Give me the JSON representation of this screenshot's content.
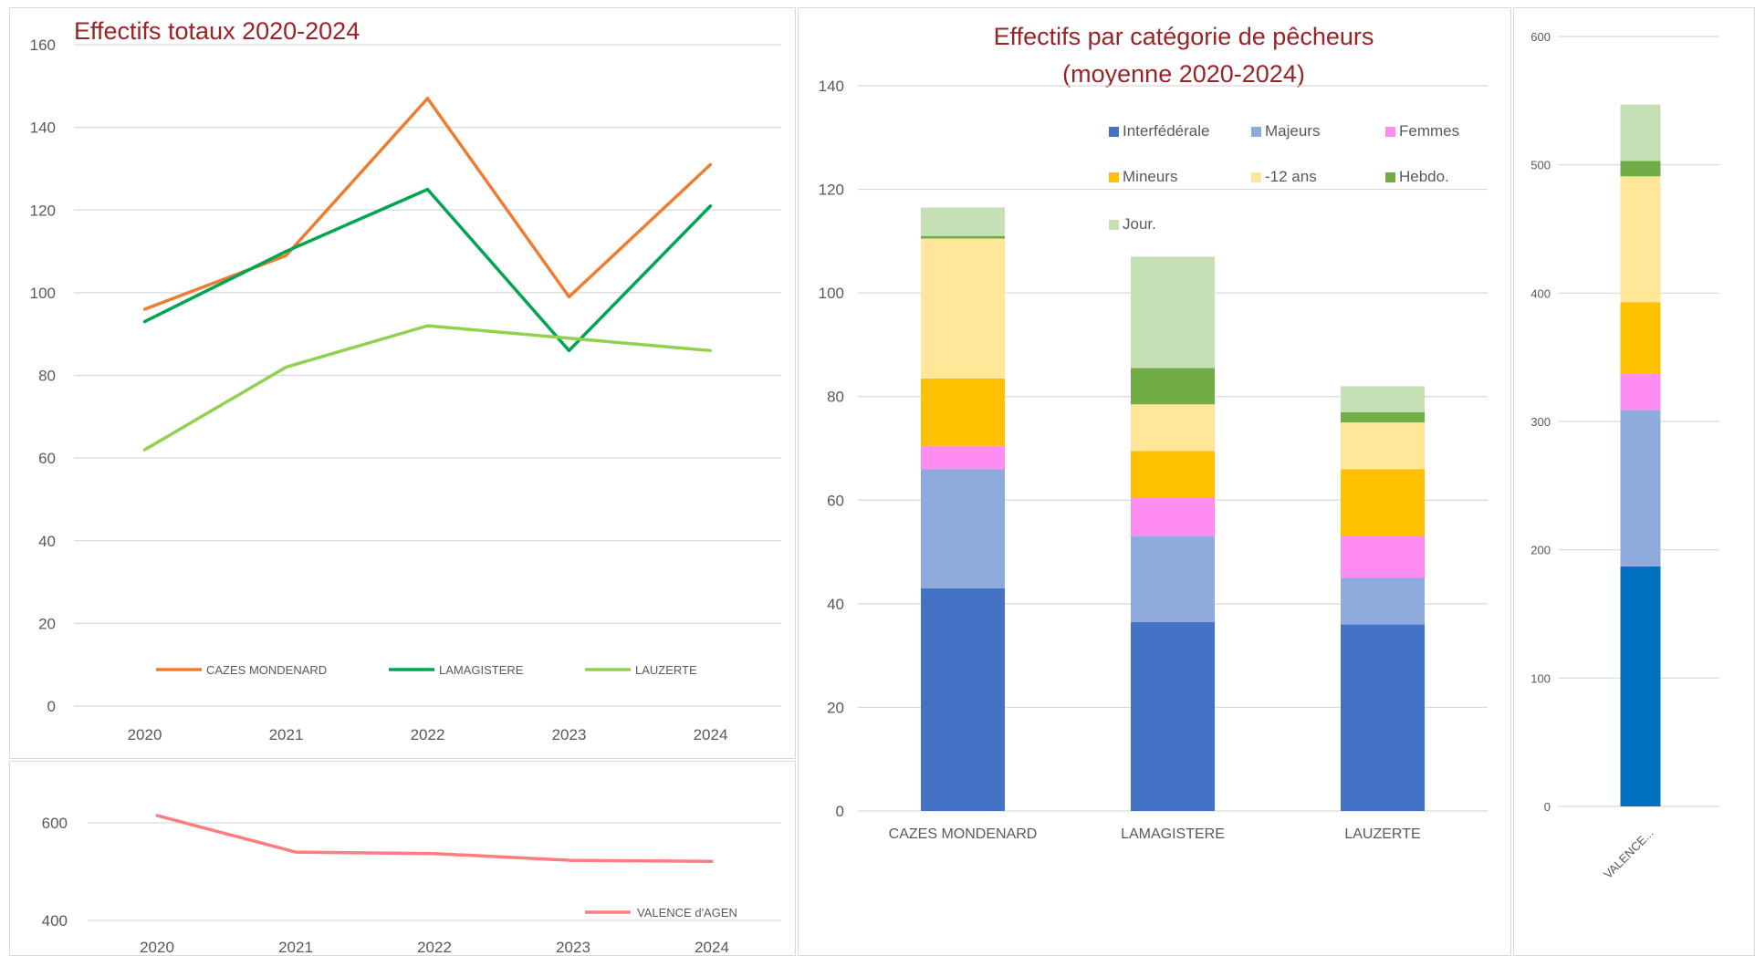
{
  "chart_data": [
    {
      "type": "line",
      "title": "Effectifs totaux 2020-2024",
      "x": [
        "2020",
        "2021",
        "2022",
        "2023",
        "2024"
      ],
      "ylim": [
        0,
        160
      ],
      "yticks": [
        0,
        20,
        40,
        60,
        80,
        100,
        120,
        140,
        160
      ],
      "grid": true,
      "legend_position": "bottom",
      "series": [
        {
          "name": "CAZES MONDENARD",
          "values": [
            96,
            109,
            147,
            99,
            131
          ],
          "color": "#ed7d31"
        },
        {
          "name": "LAMAGISTERE",
          "values": [
            93,
            110,
            125,
            86,
            121
          ],
          "color": "#00a550"
        },
        {
          "name": "LAUZERTE",
          "values": [
            62,
            82,
            92,
            89,
            86
          ],
          "color": "#92d050"
        }
      ]
    },
    {
      "type": "line",
      "title": "",
      "x": [
        "2020",
        "2021",
        "2022",
        "2023",
        "2024"
      ],
      "ylim_visible": [
        400,
        600
      ],
      "yticks": [
        400,
        600
      ],
      "grid": true,
      "legend_position": "bottom-right",
      "series": [
        {
          "name": "VALENCE d'AGEN",
          "values": [
            615,
            540,
            537,
            523,
            521
          ],
          "color": "#ff7c80"
        }
      ]
    },
    {
      "type": "bar",
      "stacked": true,
      "title": "Effectifs par catégorie de pêcheurs (moyenne 2020-2024)",
      "title_lines": [
        "Effectifs par catégorie de pêcheurs",
        "(moyenne 2020-2024)"
      ],
      "categories": [
        "CAZES MONDENARD",
        "LAMAGISTERE",
        "LAUZERTE"
      ],
      "ylim": [
        0,
        140
      ],
      "yticks": [
        0,
        20,
        40,
        60,
        80,
        100,
        120,
        140
      ],
      "grid": true,
      "legend_position": "top-right",
      "series": [
        {
          "name": "Interfédérale",
          "values": [
            43,
            36.5,
            36
          ],
          "color": "#4472c4"
        },
        {
          "name": "Majeurs",
          "values": [
            23,
            16.5,
            9
          ],
          "color": "#8faadc"
        },
        {
          "name": "Femmes",
          "values": [
            4.5,
            7.5,
            8
          ],
          "color": "#ff8cf0"
        },
        {
          "name": "Mineurs",
          "values": [
            13,
            9,
            13
          ],
          "color": "#ffc000"
        },
        {
          "name": "-12 ans",
          "values": [
            27,
            9,
            9
          ],
          "color": "#ffe699"
        },
        {
          "name": "Hebdo.",
          "values": [
            0.5,
            7,
            2
          ],
          "color": "#70ad47"
        },
        {
          "name": "Jour.",
          "values": [
            5.5,
            21.5,
            5
          ],
          "color": "#c5e0b4"
        }
      ]
    },
    {
      "type": "bar",
      "stacked": true,
      "title": "",
      "categories": [
        "VALENCE..."
      ],
      "ylim": [
        0,
        600
      ],
      "yticks": [
        0,
        100,
        200,
        300,
        400,
        500,
        600
      ],
      "grid": true,
      "series": [
        {
          "name": "Interfédérale",
          "values": [
            187
          ],
          "color": "#0070c0"
        },
        {
          "name": "Majeurs",
          "values": [
            122
          ],
          "color": "#8faadc"
        },
        {
          "name": "Femmes",
          "values": [
            28
          ],
          "color": "#ff8cf0"
        },
        {
          "name": "Mineurs",
          "values": [
            56
          ],
          "color": "#ffc000"
        },
        {
          "name": "-12 ans",
          "values": [
            98
          ],
          "color": "#ffe699"
        },
        {
          "name": "Hebdo.",
          "values": [
            12
          ],
          "color": "#70ad47"
        },
        {
          "name": "Jour.",
          "values": [
            44
          ],
          "color": "#c5e0b4"
        }
      ]
    }
  ]
}
